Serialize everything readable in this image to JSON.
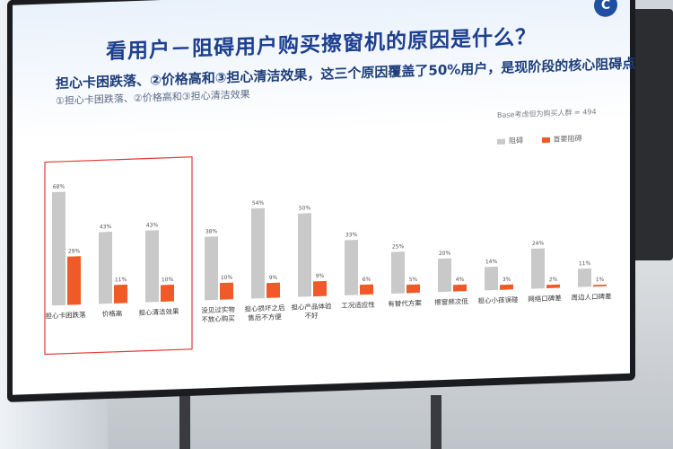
{
  "slide": {
    "title": "看用户－阻碍用户购买擦窗机的原因是什么？",
    "subtitle": "担心卡困跌落、②价格高和③担心清洁效果，这三个原因覆盖了50%用户，是现阶段的核心阻碍点",
    "subtitle_prefix": "①担心卡困跌落、②价格高和③担心清洁效果",
    "base_note": "Base考虑但为购买人群 = 494",
    "logo_text": "C"
  },
  "legend": {
    "series1": "阻碍",
    "series2": "首要阻碍"
  },
  "colors": {
    "series1": "#c9c9c9",
    "series2": "#f05a28",
    "highlight_box": "#e53935",
    "title": "#1d3f8f"
  },
  "chart_data": {
    "type": "bar",
    "categories": [
      "担心卡困跌落",
      "价格高",
      "担心清洁效果",
      "没见过实物\n不放心购买",
      "担心损坏之后\n售后不方便",
      "担心产品体验\n不好",
      "工况适应性",
      "有替代方案",
      "擦窗频次低",
      "担心小孩误碰",
      "网络口碑差",
      "周边人口碑差"
    ],
    "series": [
      {
        "name": "阻碍",
        "values": [
          68,
          43,
          43,
          38,
          54,
          50,
          33,
          25,
          20,
          14,
          24,
          11
        ],
        "labels": [
          "68%",
          "43%",
          "43%",
          "38%",
          "54%",
          "50%",
          "33%",
          "25%",
          "20%",
          "14%",
          "24%",
          "11%"
        ]
      },
      {
        "name": "首要阻碍",
        "values": [
          29,
          11,
          10,
          10,
          9,
          9,
          6,
          5,
          4,
          3,
          2,
          1
        ],
        "labels": [
          "29%",
          "11%",
          "10%",
          "10%",
          "9%",
          "9%",
          "6%",
          "5%",
          "4%",
          "3%",
          "2%",
          "1%"
        ]
      }
    ],
    "ylim": [
      0,
      70
    ],
    "highlighted_categories": 3
  }
}
